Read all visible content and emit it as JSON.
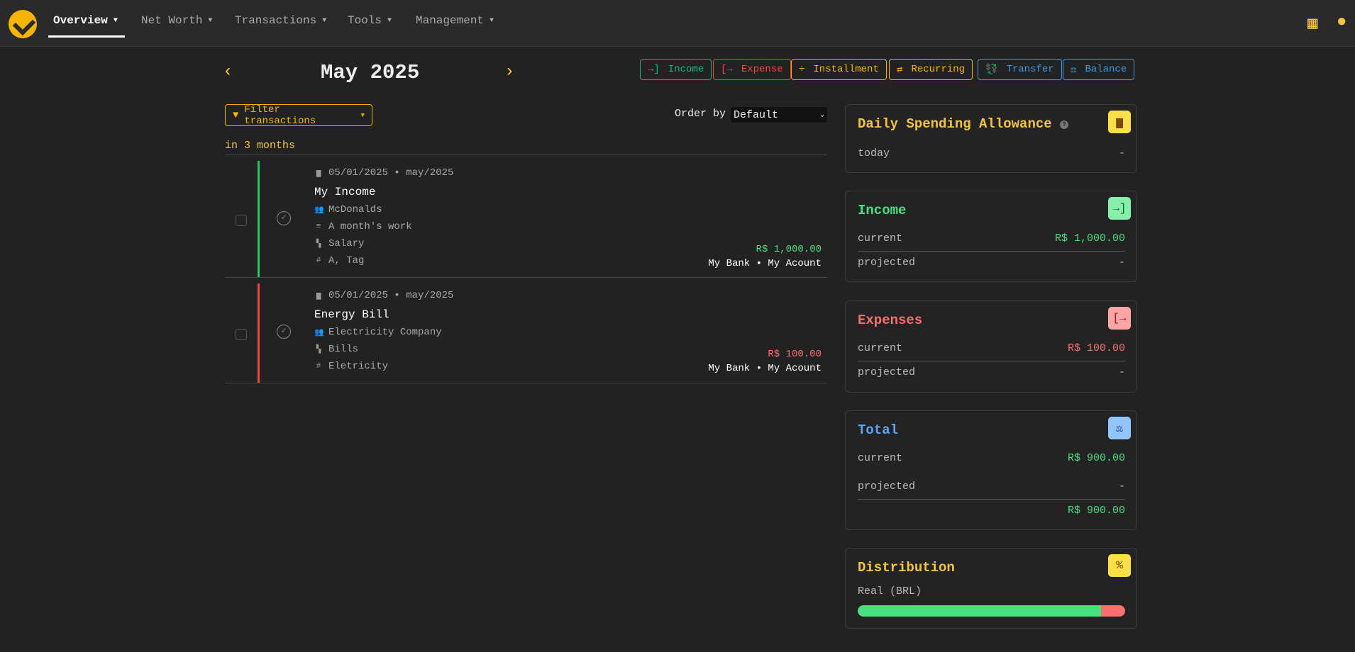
{
  "nav": {
    "items": [
      {
        "label": "Overview",
        "active": true
      },
      {
        "label": "Net Worth"
      },
      {
        "label": "Transactions"
      },
      {
        "label": "Tools"
      },
      {
        "label": "Management"
      }
    ],
    "icons": [
      "calculator-icon",
      "user-icon"
    ]
  },
  "period": {
    "month": "May 2025"
  },
  "actions": [
    {
      "label": "Income",
      "color": "#10b981",
      "icon": "→]"
    },
    {
      "label": "Expense",
      "color": "#ef4444",
      "icon": "[→"
    },
    {
      "label": "Installment",
      "color": "#f5b500",
      "icon": "÷"
    },
    {
      "label": "Recurring",
      "color": "#f5b500",
      "icon": "⇄"
    },
    {
      "label": "Transfer",
      "color": "#3b9be5",
      "icon": "💱"
    },
    {
      "label": "Balance",
      "color": "#3b9be5",
      "icon": "⚖"
    }
  ],
  "filter": {
    "label": "Filter transactions"
  },
  "order": {
    "label": "Order by",
    "value": "Default"
  },
  "group": {
    "label": "in 3 months"
  },
  "transactions": [
    {
      "date": "05/01/2025 • may/2025",
      "title": "My Income",
      "payee": "McDonalds",
      "description": "A month's work",
      "category": "Salary",
      "tags": "A, Tag",
      "amount": "R$ 1,000.00",
      "account": "My Bank • My Acount",
      "type": "income"
    },
    {
      "date": "05/01/2025 • may/2025",
      "title": "Energy Bill",
      "payee": "Electricity Company",
      "category": "Bills",
      "tags": "Eletricity",
      "amount": "R$ 100.00",
      "account": "My Bank • My Acount",
      "type": "expense"
    }
  ],
  "cards": {
    "allowance": {
      "title": "Daily Spending Allowance",
      "today_label": "today",
      "today_value": "-"
    },
    "income": {
      "title": "Income",
      "current_label": "current",
      "current": "R$ 1,000.00",
      "projected_label": "projected",
      "projected": "-"
    },
    "expenses": {
      "title": "Expenses",
      "current_label": "current",
      "current": "R$ 100.00",
      "projected_label": "projected",
      "projected": "-"
    },
    "total": {
      "title": "Total",
      "current_label": "current",
      "current": "R$ 900.00",
      "projected_label": "projected",
      "projected": "-",
      "sum": "R$ 900.00"
    },
    "distribution": {
      "title": "Distribution",
      "label": "Real (BRL)",
      "income_pct": 90.9,
      "expense_pct": 9.1
    }
  },
  "colors": {
    "income": "#4ade80",
    "expense": "#f87171",
    "accent": "#f5c542",
    "total": "#60a5fa"
  }
}
